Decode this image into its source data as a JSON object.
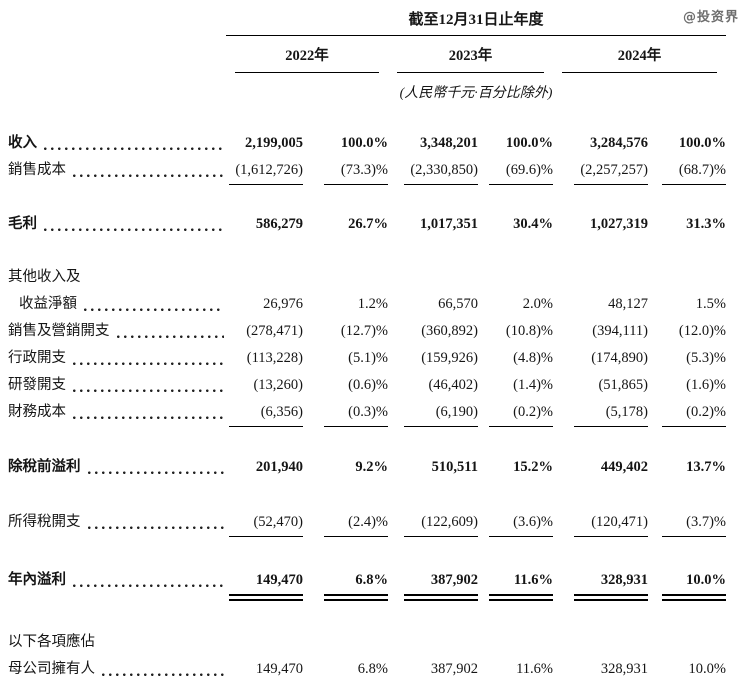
{
  "watermark": "@投资界",
  "table": {
    "period_header": "截至12月31日止年度",
    "years": [
      "2022年",
      "2023年",
      "2024年"
    ],
    "unit_note": "(人民幣千元·百分比除外)",
    "rows": [
      {
        "label": "收入",
        "values": [
          "2,199,005",
          "100.0%",
          "3,348,201",
          "100.0%",
          "3,284,576",
          "100.0%"
        ]
      },
      {
        "label": "銷售成本",
        "values": [
          "(1,612,726)",
          "(73.3)%",
          "(2,330,850)",
          "(69.6)%",
          "(2,257,257)",
          "(68.7)%"
        ]
      },
      {
        "label": "毛利",
        "values": [
          "586,279",
          "26.7%",
          "1,017,351",
          "30.4%",
          "1,027,319",
          "31.3%"
        ]
      },
      {
        "label": "其他收入及",
        "values": []
      },
      {
        "label": "收益淨額",
        "values": [
          "26,976",
          "1.2%",
          "66,570",
          "2.0%",
          "48,127",
          "1.5%"
        ]
      },
      {
        "label": "銷售及營銷開支",
        "values": [
          "(278,471)",
          "(12.7)%",
          "(360,892)",
          "(10.8)%",
          "(394,111)",
          "(12.0)%"
        ]
      },
      {
        "label": "行政開支",
        "values": [
          "(113,228)",
          "(5.1)%",
          "(159,926)",
          "(4.8)%",
          "(174,890)",
          "(5.3)%"
        ]
      },
      {
        "label": "研發開支",
        "values": [
          "(13,260)",
          "(0.6)%",
          "(46,402)",
          "(1.4)%",
          "(51,865)",
          "(1.6)%"
        ]
      },
      {
        "label": "財務成本",
        "values": [
          "(6,356)",
          "(0.3)%",
          "(6,190)",
          "(0.2)%",
          "(5,178)",
          "(0.2)%"
        ]
      },
      {
        "label": "除稅前溢利",
        "values": [
          "201,940",
          "9.2%",
          "510,511",
          "15.2%",
          "449,402",
          "13.7%"
        ]
      },
      {
        "label": "所得稅開支",
        "values": [
          "(52,470)",
          "(2.4)%",
          "(122,609)",
          "(3.6)%",
          "(120,471)",
          "(3.7)%"
        ]
      },
      {
        "label": "年內溢利",
        "values": [
          "149,470",
          "6.8%",
          "387,902",
          "11.6%",
          "328,931",
          "10.0%"
        ]
      },
      {
        "label": "以下各項應佔",
        "values": []
      },
      {
        "label": "母公司擁有人",
        "values": [
          "149,470",
          "6.8%",
          "387,902",
          "11.6%",
          "328,931",
          "10.0%"
        ]
      }
    ]
  }
}
